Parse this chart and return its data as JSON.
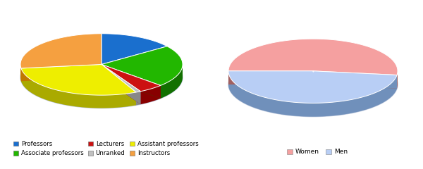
{
  "chart1": {
    "labels": [
      "Professors",
      "Associate professors",
      "Lecturers",
      "Unranked",
      "Assistant professors",
      "Instructors"
    ],
    "values": [
      15,
      22,
      5,
      1,
      30,
      27
    ],
    "colors": [
      "#1a6fce",
      "#22b700",
      "#cc1111",
      "#c0c0c0",
      "#eeee00",
      "#f5a040"
    ],
    "side_colors": [
      "#0d4090",
      "#127000",
      "#880000",
      "#888888",
      "#aaaa00",
      "#c07800"
    ],
    "start_angle": 90
  },
  "chart2": {
    "labels": [
      "Women",
      "Men"
    ],
    "values": [
      52,
      48
    ],
    "colors": [
      "#f5a0a0",
      "#b8cef5"
    ],
    "side_colors": [
      "#a06060",
      "#7090bb"
    ],
    "start_angle": 180
  },
  "tilt": 0.38,
  "thickness": 0.16,
  "background": "#ffffff",
  "legend1_order": [
    0,
    1,
    2,
    3,
    4,
    5
  ]
}
